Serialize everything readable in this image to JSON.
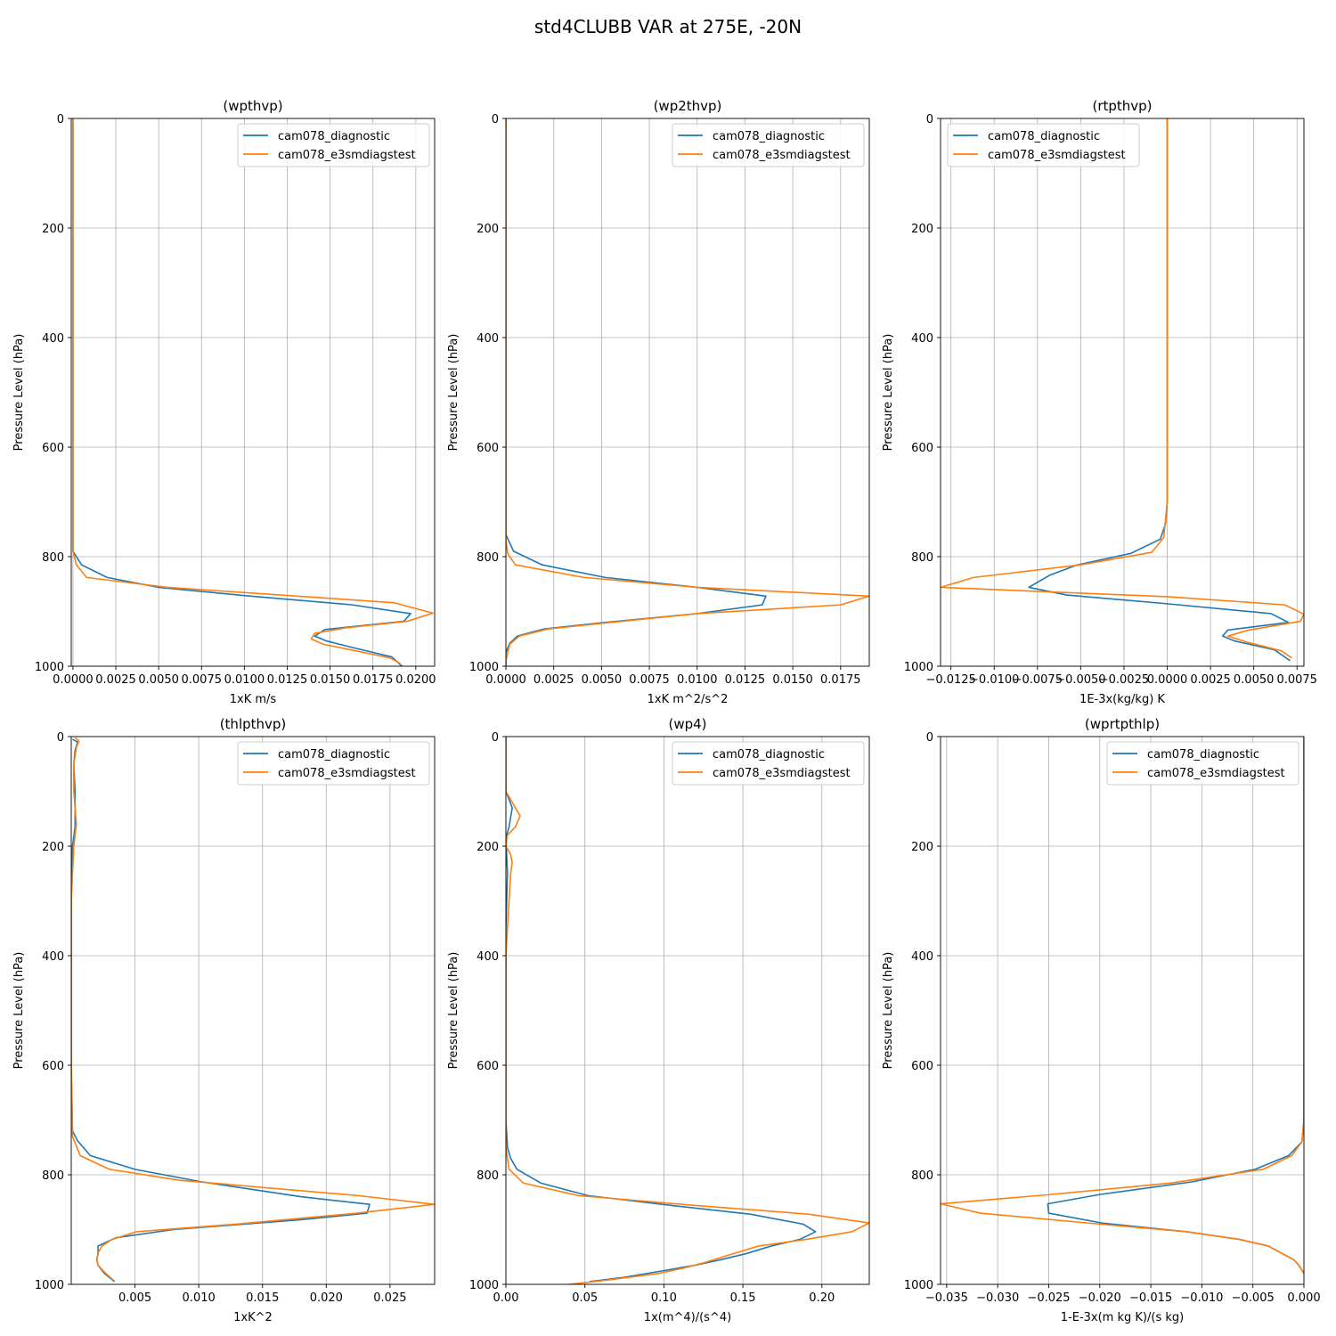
{
  "figure": {
    "suptitle": "std4CLUBB VAR at 275E, -20N"
  },
  "colors": {
    "diagnostic": "#1f77b4",
    "e3smdiagstest": "#ff7f0e",
    "grid": "#b0b0b0",
    "axis": "#000000"
  },
  "chart_data": [
    {
      "type": "line",
      "title": "(wpthvp)",
      "xlabel": "1xK m/s",
      "ylabel": "Pressure Level (hPa)",
      "xlim": [
        -0.0001,
        0.0211
      ],
      "ylim": [
        1000,
        0
      ],
      "x_ticks": [
        0.0,
        0.0025,
        0.005,
        0.0075,
        0.01,
        0.0125,
        0.015,
        0.0175,
        0.02
      ],
      "x_tick_labels": [
        "0.0000",
        "0.0025",
        "0.0050",
        "0.0075",
        "0.0100",
        "0.0125",
        "0.0150",
        "0.0175",
        "0.0200"
      ],
      "y_ticks": [
        0,
        200,
        400,
        600,
        800,
        1000
      ],
      "y_tick_labels": [
        "0",
        "200",
        "400",
        "600",
        "800",
        "1000"
      ],
      "grid": true,
      "legend_position": "top-right",
      "series": [
        {
          "name": "cam078_diagnostic",
          "color": "#1f77b4",
          "x": [
            0.0,
            0.0,
            0.0,
            0.0,
            0.0005,
            0.002,
            0.005,
            0.01,
            0.0163,
            0.0197,
            0.0193,
            0.0147,
            0.0141,
            0.0148,
            0.0162,
            0.0186,
            0.0192
          ],
          "y": [
            0,
            200,
            600,
            790,
            815,
            838,
            856,
            871,
            888,
            904,
            918,
            933,
            945,
            954,
            965,
            983,
            1000
          ]
        },
        {
          "name": "cam078_e3smdiagstest",
          "color": "#ff7f0e",
          "x": [
            0.0,
            0.0,
            0.0,
            0.0,
            0.0002,
            0.0008,
            0.0055,
            0.0187,
            0.021,
            0.0195,
            0.0159,
            0.0141,
            0.0139,
            0.0146,
            0.0162,
            0.0185,
            0.0191
          ],
          "y": [
            0,
            200,
            600,
            790,
            815,
            838,
            856,
            884,
            903,
            918,
            930,
            940,
            950,
            960,
            970,
            985,
            995
          ]
        }
      ]
    },
    {
      "type": "line",
      "title": "(wp2thvp)",
      "xlabel": "1xK m^2/s^2",
      "ylabel": "Pressure Level (hPa)",
      "xlim": [
        0.0,
        0.019
      ],
      "ylim": [
        1000,
        0
      ],
      "x_ticks": [
        0.0,
        0.0025,
        0.005,
        0.0075,
        0.01,
        0.0125,
        0.015,
        0.0175
      ],
      "x_tick_labels": [
        "0.0000",
        "0.0025",
        "0.0050",
        "0.0075",
        "0.0100",
        "0.0125",
        "0.0150",
        "0.0175"
      ],
      "y_ticks": [
        0,
        200,
        400,
        600,
        800,
        1000
      ],
      "y_tick_labels": [
        "0",
        "200",
        "400",
        "600",
        "800",
        "1000"
      ],
      "grid": true,
      "legend_position": "top-right",
      "series": [
        {
          "name": "cam078_diagnostic",
          "color": "#1f77b4",
          "x": [
            0.0,
            0.0,
            0.0,
            0.0004,
            0.0019,
            0.0052,
            0.01,
            0.0136,
            0.0134,
            0.01,
            0.0052,
            0.002,
            0.0006,
            0.0002,
            0.0,
            0.0
          ],
          "y": [
            0,
            200,
            760,
            790,
            815,
            838,
            856,
            872,
            888,
            904,
            920,
            932,
            945,
            958,
            975,
            1000
          ]
        },
        {
          "name": "cam078_e3smdiagstest",
          "color": "#ff7f0e",
          "x": [
            0.0,
            0.0,
            0.0,
            0.0001,
            0.0005,
            0.0041,
            0.01,
            0.019,
            0.0175,
            0.01,
            0.0055,
            0.0022,
            0.0007,
            0.0002,
            0.0
          ],
          "y": [
            0,
            200,
            770,
            795,
            815,
            838,
            856,
            872,
            888,
            904,
            920,
            932,
            945,
            960,
            990
          ]
        }
      ]
    },
    {
      "type": "line",
      "title": "(rtpthvp)",
      "xlabel": "1E-3x(kg/kg) K",
      "ylabel": "Pressure Level (hPa)",
      "xlim": [
        -0.0131,
        0.0079
      ],
      "ylim": [
        1000,
        0
      ],
      "x_ticks": [
        -0.0125,
        -0.01,
        -0.0075,
        -0.005,
        -0.0025,
        0.0,
        0.0025,
        0.005,
        0.0075
      ],
      "x_tick_labels": [
        "−0.0125",
        "−0.0100",
        "−0.0075",
        "−0.0050",
        "−0.0025",
        "0.0000",
        "0.0025",
        "0.0050",
        "0.0075"
      ],
      "y_ticks": [
        0,
        200,
        400,
        600,
        800,
        1000
      ],
      "y_tick_labels": [
        "0",
        "200",
        "400",
        "600",
        "800",
        "1000"
      ],
      "grid": true,
      "legend_position": "top-left",
      "series": [
        {
          "name": "cam078_diagnostic",
          "color": "#1f77b4",
          "x": [
            0.0,
            0.0,
            0.0,
            -0.0001,
            -0.0004,
            -0.0021,
            -0.0052,
            -0.0068,
            -0.008,
            -0.0058,
            0.0,
            0.006,
            0.007,
            0.0035,
            0.0032,
            0.0039,
            0.0062,
            0.0071
          ],
          "y": [
            0,
            200,
            700,
            740,
            768,
            794,
            815,
            834,
            856,
            870,
            886,
            904,
            920,
            934,
            945,
            954,
            970,
            990
          ]
        },
        {
          "name": "cam078_e3smdiagstest",
          "color": "#ff7f0e",
          "x": [
            0.0,
            0.0,
            0.0,
            -0.0002,
            -0.0009,
            -0.005,
            -0.0112,
            -0.0131,
            0.0,
            0.0068,
            0.0079,
            0.0077,
            0.0047,
            0.0035,
            0.0046,
            0.0066,
            0.0072
          ],
          "y": [
            0,
            200,
            700,
            765,
            792,
            815,
            838,
            856,
            873,
            888,
            905,
            918,
            934,
            945,
            956,
            972,
            985
          ]
        }
      ]
    },
    {
      "type": "line",
      "title": "(thlpthvp)",
      "xlabel": "1xK^2",
      "ylabel": "Pressure Level (hPa)",
      "xlim": [
        0.0,
        0.0285
      ],
      "ylim": [
        1000,
        0
      ],
      "x_ticks": [
        0.005,
        0.01,
        0.015,
        0.02,
        0.025
      ],
      "x_tick_labels": [
        "0.005",
        "0.010",
        "0.015",
        "0.020",
        "0.025"
      ],
      "y_ticks": [
        0,
        200,
        400,
        600,
        800,
        1000
      ],
      "y_tick_labels": [
        "0",
        "200",
        "400",
        "600",
        "800",
        "1000"
      ],
      "grid": true,
      "legend_position": "top-right",
      "series": [
        {
          "name": "cam078_diagnostic",
          "color": "#1f77b4",
          "x": [
            0.0001,
            0.0005,
            0.0003,
            0.0002,
            0.0003,
            0.0003,
            0.0001,
            0.0,
            0.0,
            0.0001,
            0.0005,
            0.0015,
            0.005,
            0.01,
            0.018,
            0.0234,
            0.0232,
            0.018,
            0.008,
            0.0035,
            0.0021,
            0.0021,
            0.002,
            0.0021,
            0.0026,
            0.0034
          ],
          "y": [
            5,
            10,
            25,
            50,
            100,
            165,
            200,
            300,
            600,
            720,
            738,
            765,
            790,
            812,
            840,
            854,
            870,
            882,
            900,
            915,
            930,
            945,
            955,
            965,
            980,
            995
          ]
        },
        {
          "name": "cam078_e3smdiagstest",
          "color": "#ff7f0e",
          "x": [
            0.0003,
            0.0006,
            0.0004,
            0.0002,
            0.0002,
            0.0004,
            0.0002,
            0.0,
            0.0,
            0.0001,
            0.0007,
            0.003,
            0.0085,
            0.0225,
            0.0285,
            0.022,
            0.013,
            0.0051,
            0.0032,
            0.0024,
            0.0021,
            0.002,
            0.0021,
            0.0027,
            0.0033
          ],
          "y": [
            2,
            8,
            20,
            50,
            100,
            160,
            200,
            300,
            600,
            730,
            765,
            790,
            810,
            838,
            854,
            871,
            890,
            904,
            918,
            930,
            943,
            955,
            965,
            980,
            992
          ]
        }
      ]
    },
    {
      "type": "line",
      "title": "(wp4)",
      "xlabel": "1x(m^4)/(s^4)",
      "ylabel": "Pressure Level (hPa)",
      "xlim": [
        0.0,
        0.23
      ],
      "ylim": [
        1000,
        0
      ],
      "x_ticks": [
        0.0,
        0.05,
        0.1,
        0.15,
        0.2
      ],
      "x_tick_labels": [
        "0.00",
        "0.05",
        "0.10",
        "0.15",
        "0.20"
      ],
      "y_ticks": [
        0,
        200,
        400,
        600,
        800,
        1000
      ],
      "y_tick_labels": [
        "0",
        "200",
        "400",
        "600",
        "800",
        "1000"
      ],
      "grid": true,
      "legend_position": "top-right",
      "series": [
        {
          "name": "cam078_diagnostic",
          "color": "#1f77b4",
          "x": [
            0.0,
            0.0,
            0.002,
            0.004,
            0.002,
            0.0,
            0.001,
            0.0,
            0.0,
            0.001,
            0.003,
            0.007,
            0.022,
            0.052,
            0.105,
            0.155,
            0.188,
            0.196,
            0.186,
            0.168,
            0.152,
            0.136,
            0.12,
            0.1,
            0.075,
            0.053
          ],
          "y": [
            0,
            100,
            115,
            130,
            165,
            185,
            250,
            350,
            700,
            750,
            770,
            790,
            815,
            838,
            856,
            872,
            890,
            904,
            918,
            930,
            944,
            955,
            965,
            975,
            987,
            995
          ]
        },
        {
          "name": "cam078_e3smdiagstest",
          "color": "#ff7f0e",
          "x": [
            0.0,
            0.0,
            0.004,
            0.009,
            0.006,
            0.001,
            0.0,
            0.003,
            0.004,
            0.003,
            0.002,
            0.0,
            0.0,
            0.0,
            0.002,
            0.011,
            0.046,
            0.12,
            0.192,
            0.23,
            0.219,
            0.19,
            0.16,
            0.143,
            0.126,
            0.113,
            0.097,
            0.065,
            0.04
          ],
          "y": [
            0,
            100,
            120,
            145,
            165,
            180,
            200,
            215,
            230,
            250,
            300,
            400,
            700,
            750,
            790,
            815,
            838,
            856,
            872,
            888,
            904,
            918,
            930,
            945,
            960,
            970,
            980,
            992,
            1000
          ]
        }
      ]
    },
    {
      "type": "line",
      "title": "(wprtpthlp)",
      "xlabel": "1-E-3x(m kg K)/(s kg)",
      "ylabel": "Pressure Level (hPa)",
      "xlim": [
        -0.0356,
        0.0
      ],
      "ylim": [
        1000,
        0
      ],
      "x_ticks": [
        -0.035,
        -0.03,
        -0.025,
        -0.02,
        -0.015,
        -0.01,
        -0.005,
        0.0
      ],
      "x_tick_labels": [
        "−0.035",
        "−0.030",
        "−0.025",
        "−0.020",
        "−0.015",
        "−0.010",
        "−0.005",
        "0.000"
      ],
      "y_ticks": [
        0,
        200,
        400,
        600,
        800,
        1000
      ],
      "y_tick_labels": [
        "0",
        "200",
        "400",
        "600",
        "800",
        "1000"
      ],
      "grid": true,
      "legend_position": "top-right",
      "series": [
        {
          "name": "cam078_diagnostic",
          "color": "#1f77b4",
          "x": [
            0.0,
            0.0,
            0.0,
            -0.0002,
            -0.0015,
            -0.0048,
            -0.011,
            -0.02,
            -0.0251,
            -0.025,
            -0.0198,
            -0.0115,
            -0.0063,
            -0.0035,
            -0.002,
            -0.001,
            -0.0005,
            0.0
          ],
          "y": [
            0,
            200,
            700,
            740,
            765,
            790,
            813,
            836,
            853,
            870,
            888,
            904,
            918,
            930,
            945,
            955,
            965,
            980
          ]
        },
        {
          "name": "cam078_e3smdiagstest",
          "color": "#ff7f0e",
          "x": [
            0.0,
            0.0,
            0.0,
            -0.0002,
            -0.0012,
            -0.004,
            -0.013,
            -0.0248,
            -0.0356,
            -0.0317,
            -0.0212,
            -0.0115,
            -0.0063,
            -0.0035,
            -0.002,
            -0.001,
            -0.0005,
            0.0
          ],
          "y": [
            0,
            200,
            700,
            740,
            765,
            790,
            815,
            836,
            853,
            870,
            888,
            904,
            918,
            930,
            945,
            955,
            965,
            980
          ]
        }
      ]
    }
  ]
}
